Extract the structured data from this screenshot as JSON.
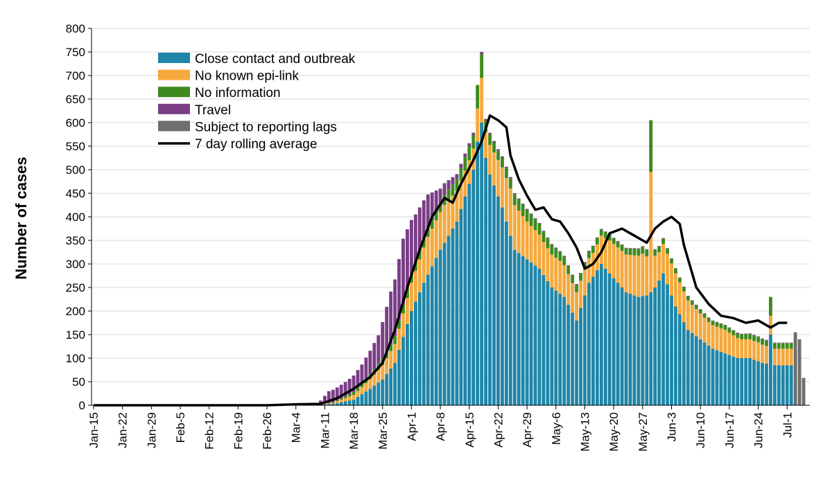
{
  "chart_data": {
    "type": "bar",
    "stacked": true,
    "title": "",
    "xlabel": "",
    "ylabel": "Number of cases",
    "ylim": [
      0,
      800
    ],
    "yticks": [
      0,
      50,
      100,
      150,
      200,
      250,
      300,
      350,
      400,
      450,
      500,
      550,
      600,
      650,
      700,
      750,
      800
    ],
    "grid": "horizontal",
    "legend_position": "top-left",
    "x_start_date": "Jan-15",
    "x_end_date": "Jul-6",
    "xtick_labels": [
      "Jan-15",
      "Jan-22",
      "Jan-29",
      "Feb-5",
      "Feb-12",
      "Feb-19",
      "Feb-26",
      "Mar-4",
      "Mar-11",
      "Mar-18",
      "Mar-25",
      "Apr-1",
      "Apr-8",
      "Apr-15",
      "Apr-22",
      "Apr-29",
      "May-6",
      "May-13",
      "May-20",
      "May-27",
      "Jun-3",
      "Jun-10",
      "Jun-17",
      "Jun-24",
      "Jul-1"
    ],
    "colors": {
      "close_contact": "#1f86a8",
      "no_epi_link": "#f5a93c",
      "no_info": "#3e8a1e",
      "travel": "#7a3d86",
      "reporting_lag": "#6f6f6f",
      "rolling_avg": "#000000"
    },
    "legend": [
      {
        "label": "Close contact and outbreak",
        "key": "close_contact",
        "kind": "box"
      },
      {
        "label": "No known epi-link",
        "key": "no_epi_link",
        "kind": "box"
      },
      {
        "label": "No information",
        "key": "no_info",
        "kind": "box"
      },
      {
        "label": "Travel",
        "key": "travel",
        "kind": "box"
      },
      {
        "label": "Subject to reporting lags",
        "key": "reporting_lag",
        "kind": "box"
      },
      {
        "label": "7 day rolling average",
        "key": "rolling_avg",
        "kind": "line"
      }
    ],
    "series_order": [
      "close_contact",
      "no_epi_link",
      "no_info",
      "travel",
      "reporting_lag"
    ],
    "series_anchors": {
      "close_contact": [
        [
          "Mar-9",
          0
        ],
        [
          "Mar-13",
          3
        ],
        [
          "Mar-18",
          12
        ],
        [
          "Mar-22",
          35
        ],
        [
          "Mar-25",
          55
        ],
        [
          "Mar-28",
          90
        ],
        [
          "Apr-1",
          200
        ],
        [
          "Apr-4",
          260
        ],
        [
          "Apr-8",
          330
        ],
        [
          "Apr-12",
          390
        ],
        [
          "Apr-15",
          470
        ],
        [
          "Apr-18",
          560
        ],
        [
          "Apr-20",
          490
        ],
        [
          "Apr-23",
          420
        ],
        [
          "Apr-26",
          330
        ],
        [
          "Apr-29",
          310
        ],
        [
          "May-2",
          290
        ],
        [
          "May-5",
          250
        ],
        [
          "May-8",
          230
        ],
        [
          "May-11",
          180
        ],
        [
          "May-14",
          260
        ],
        [
          "May-17",
          300
        ],
        [
          "May-20",
          270
        ],
        [
          "May-23",
          240
        ],
        [
          "May-26",
          230
        ],
        [
          "May-29",
          235
        ],
        [
          "Jun-1",
          280
        ],
        [
          "Jun-4",
          210
        ],
        [
          "Jun-7",
          160
        ],
        [
          "Jun-10",
          140
        ],
        [
          "Jun-13",
          120
        ],
        [
          "Jun-16",
          110
        ],
        [
          "Jun-19",
          100
        ],
        [
          "Jun-22",
          100
        ],
        [
          "Jun-25",
          90
        ],
        [
          "Jun-28",
          85
        ],
        [
          "Jul-2",
          85
        ]
      ],
      "no_epi_link": [
        [
          "Mar-9",
          0
        ],
        [
          "Mar-13",
          2
        ],
        [
          "Mar-18",
          10
        ],
        [
          "Mar-22",
          20
        ],
        [
          "Mar-25",
          30
        ],
        [
          "Mar-28",
          40
        ],
        [
          "Apr-1",
          60
        ],
        [
          "Apr-5",
          80
        ],
        [
          "Apr-9",
          80
        ],
        [
          "Apr-13",
          60
        ],
        [
          "Apr-17",
          40
        ],
        [
          "Apr-21",
          70
        ],
        [
          "Apr-25",
          100
        ],
        [
          "Apr-29",
          80
        ],
        [
          "May-3",
          70
        ],
        [
          "May-7",
          70
        ],
        [
          "May-11",
          60
        ],
        [
          "May-15",
          50
        ],
        [
          "May-19",
          70
        ],
        [
          "May-23",
          80
        ],
        [
          "May-27",
          90
        ],
        [
          "May-31",
          60
        ],
        [
          "Jun-4",
          70
        ],
        [
          "Jun-8",
          60
        ],
        [
          "Jun-12",
          50
        ],
        [
          "Jun-16",
          50
        ],
        [
          "Jun-20",
          40
        ],
        [
          "Jun-24",
          40
        ],
        [
          "Jun-28",
          35
        ],
        [
          "Jul-2",
          35
        ]
      ],
      "no_info": [
        [
          "Mar-9",
          0
        ],
        [
          "Mar-14",
          2
        ],
        [
          "Mar-20",
          8
        ],
        [
          "Mar-25",
          15
        ],
        [
          "Apr-1",
          20
        ],
        [
          "Apr-8",
          20
        ],
        [
          "Apr-15",
          30
        ],
        [
          "Apr-22",
          20
        ],
        [
          "Apr-29",
          25
        ],
        [
          "May-6",
          20
        ],
        [
          "May-13",
          15
        ],
        [
          "May-20",
          12
        ],
        [
          "May-27",
          15
        ],
        [
          "Jun-3",
          10
        ],
        [
          "Jun-10",
          8
        ],
        [
          "Jun-17",
          10
        ],
        [
          "Jun-24",
          12
        ],
        [
          "Jul-2",
          12
        ]
      ],
      "travel": [
        [
          "Mar-9",
          0
        ],
        [
          "Mar-12",
          25
        ],
        [
          "Mar-16",
          30
        ],
        [
          "Mar-20",
          40
        ],
        [
          "Mar-24",
          60
        ],
        [
          "Mar-27",
          110
        ],
        [
          "Mar-30",
          140
        ],
        [
          "Apr-2",
          100
        ],
        [
          "Apr-5",
          70
        ],
        [
          "Apr-8",
          30
        ],
        [
          "Apr-12",
          10
        ],
        [
          "Apr-16",
          5
        ],
        [
          "Apr-20",
          3
        ],
        [
          "Apr-27",
          2
        ],
        [
          "May-10",
          1
        ],
        [
          "Jul-2",
          1
        ]
      ],
      "reporting_lag": []
    },
    "overrides": [
      {
        "date": "Apr-17",
        "close_contact": 560,
        "no_epi_link": 70,
        "no_info": 50,
        "travel": 0
      },
      {
        "date": "Apr-18",
        "close_contact": 600,
        "no_epi_link": 95,
        "no_info": 50,
        "travel": 5
      },
      {
        "date": "May-29",
        "close_contact": 240,
        "no_epi_link": 255,
        "no_info": 110,
        "travel": 0
      },
      {
        "date": "Jun-27",
        "close_contact": 150,
        "no_epi_link": 40,
        "no_info": 40,
        "travel": 0
      },
      {
        "date": "Jul-3",
        "close_contact": 0,
        "no_epi_link": 0,
        "no_info": 0,
        "travel": 0,
        "reporting_lag": 155
      },
      {
        "date": "Jul-4",
        "close_contact": 0,
        "no_epi_link": 0,
        "no_info": 0,
        "travel": 0,
        "reporting_lag": 140
      },
      {
        "date": "Jul-5",
        "close_contact": 0,
        "no_epi_link": 0,
        "no_info": 0,
        "travel": 0,
        "reporting_lag": 58
      }
    ],
    "rolling_average": [
      [
        "Jan-15",
        0
      ],
      [
        "Feb-26",
        0
      ],
      [
        "Mar-4",
        2
      ],
      [
        "Mar-10",
        3
      ],
      [
        "Mar-14",
        15
      ],
      [
        "Mar-18",
        35
      ],
      [
        "Mar-22",
        60
      ],
      [
        "Mar-25",
        90
      ],
      [
        "Mar-28",
        160
      ],
      [
        "Mar-31",
        250
      ],
      [
        "Apr-3",
        330
      ],
      [
        "Apr-6",
        400
      ],
      [
        "Apr-9",
        440
      ],
      [
        "Apr-11",
        430
      ],
      [
        "Apr-13",
        470
      ],
      [
        "Apr-16",
        520
      ],
      [
        "Apr-18",
        560
      ],
      [
        "Apr-20",
        615
      ],
      [
        "Apr-22",
        605
      ],
      [
        "Apr-24",
        590
      ],
      [
        "Apr-25",
        530
      ],
      [
        "Apr-27",
        480
      ],
      [
        "Apr-29",
        445
      ],
      [
        "May-1",
        415
      ],
      [
        "May-3",
        420
      ],
      [
        "May-5",
        395
      ],
      [
        "May-7",
        390
      ],
      [
        "May-9",
        365
      ],
      [
        "May-11",
        335
      ],
      [
        "May-13",
        290
      ],
      [
        "May-15",
        300
      ],
      [
        "May-17",
        325
      ],
      [
        "May-19",
        365
      ],
      [
        "May-22",
        375
      ],
      [
        "May-25",
        360
      ],
      [
        "May-28",
        345
      ],
      [
        "May-30",
        375
      ],
      [
        "Jun-1",
        390
      ],
      [
        "Jun-3",
        400
      ],
      [
        "Jun-5",
        385
      ],
      [
        "Jun-6",
        340
      ],
      [
        "Jun-9",
        250
      ],
      [
        "Jun-12",
        215
      ],
      [
        "Jun-15",
        190
      ],
      [
        "Jun-18",
        185
      ],
      [
        "Jun-21",
        175
      ],
      [
        "Jun-24",
        180
      ],
      [
        "Jun-27",
        165
      ],
      [
        "Jun-29",
        175
      ],
      [
        "Jul-1",
        175
      ]
    ]
  }
}
